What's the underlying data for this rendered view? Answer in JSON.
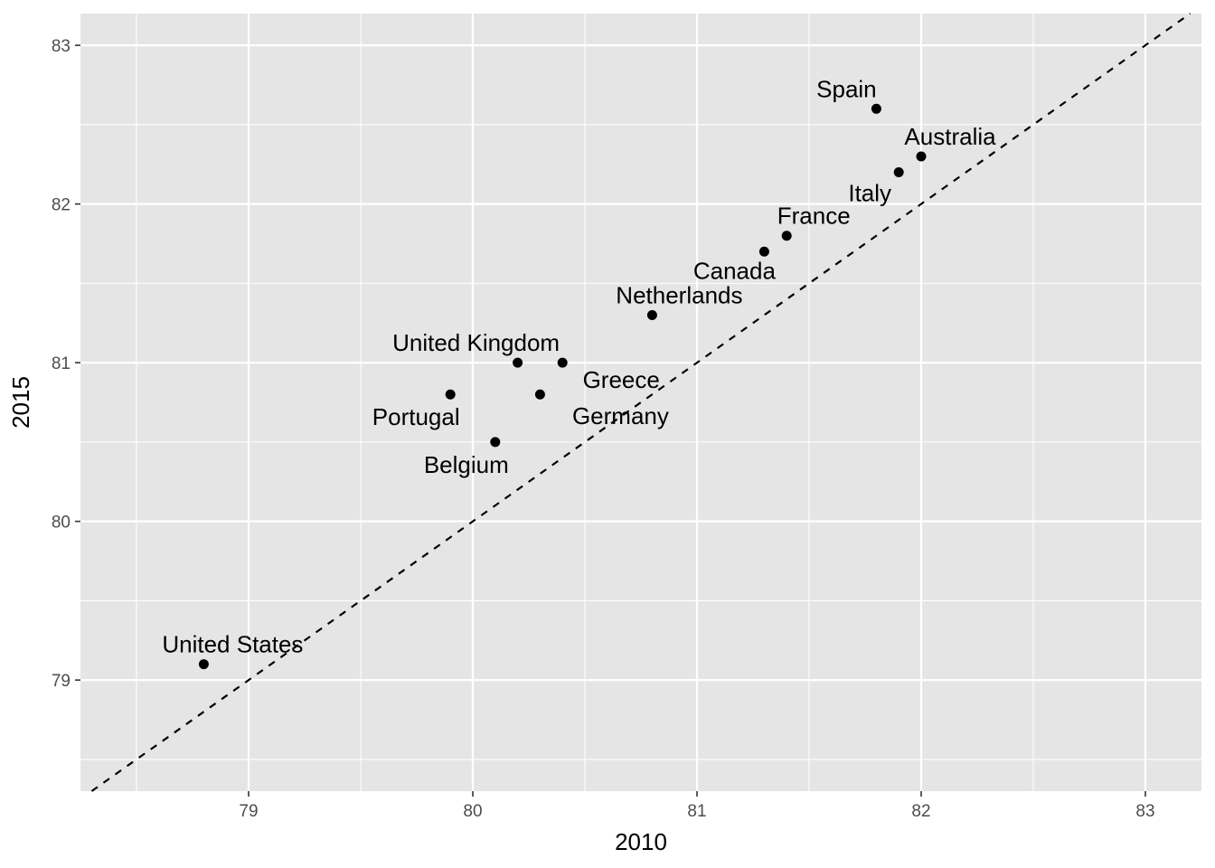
{
  "chart_data": {
    "type": "scatter",
    "title": "",
    "xlabel": "2010",
    "ylabel": "2015",
    "xlim": [
      78.25,
      83.25
    ],
    "ylim": [
      78.3,
      83.2
    ],
    "x_ticks": [
      "79",
      "80",
      "81",
      "82",
      "83"
    ],
    "y_ticks": [
      "79",
      "80",
      "81",
      "82",
      "83"
    ],
    "grid": true,
    "reference_line": {
      "style": "dashed",
      "slope": 1,
      "intercept": 0
    },
    "points": [
      {
        "label": "United States",
        "x": 78.8,
        "y": 79.1
      },
      {
        "label": "Portugal",
        "x": 79.9,
        "y": 80.8
      },
      {
        "label": "Belgium",
        "x": 80.1,
        "y": 80.5
      },
      {
        "label": "United Kingdom",
        "x": 80.2,
        "y": 81.0
      },
      {
        "label": "Germany",
        "x": 80.3,
        "y": 80.8
      },
      {
        "label": "Greece",
        "x": 80.4,
        "y": 81.0
      },
      {
        "label": "Netherlands",
        "x": 80.8,
        "y": 81.3
      },
      {
        "label": "Canada",
        "x": 81.3,
        "y": 81.7
      },
      {
        "label": "France",
        "x": 81.4,
        "y": 81.8
      },
      {
        "label": "Italy",
        "x": 81.9,
        "y": 82.2
      },
      {
        "label": "Spain",
        "x": 81.8,
        "y": 82.6
      },
      {
        "label": "Australia",
        "x": 82.0,
        "y": 82.3
      }
    ]
  },
  "colors": {
    "panel": "#e5e5e5",
    "grid": "#ffffff",
    "point": "#000000",
    "text": "#000000",
    "tick_text": "#4d4d4d"
  }
}
